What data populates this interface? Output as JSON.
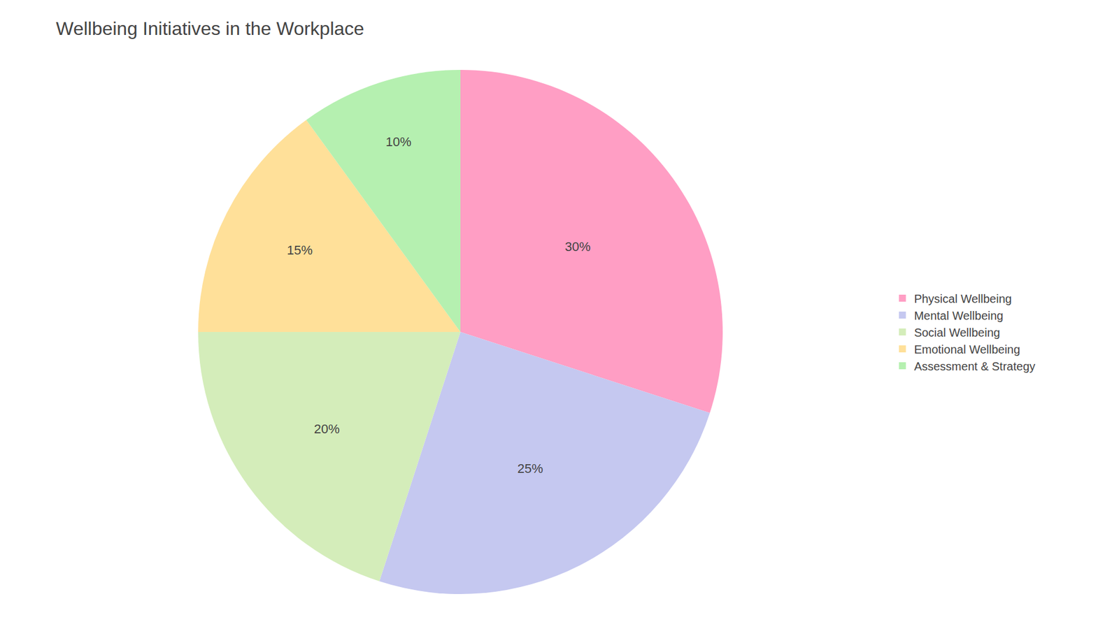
{
  "chart_data": {
    "type": "pie",
    "title": "Wellbeing Initiatives in the Workplace",
    "categories": [
      "Physical Wellbeing",
      "Mental Wellbeing",
      "Social Wellbeing",
      "Emotional Wellbeing",
      "Assessment & Strategy"
    ],
    "values": [
      30,
      25,
      20,
      15,
      10
    ],
    "value_labels": [
      "30%",
      "25%",
      "20%",
      "15%",
      "10%"
    ],
    "colors": [
      "#FF9EC4",
      "#C5C8F0",
      "#D4EDBA",
      "#FFE099",
      "#B5F0B0"
    ],
    "data_labels": true,
    "legend": "right"
  }
}
